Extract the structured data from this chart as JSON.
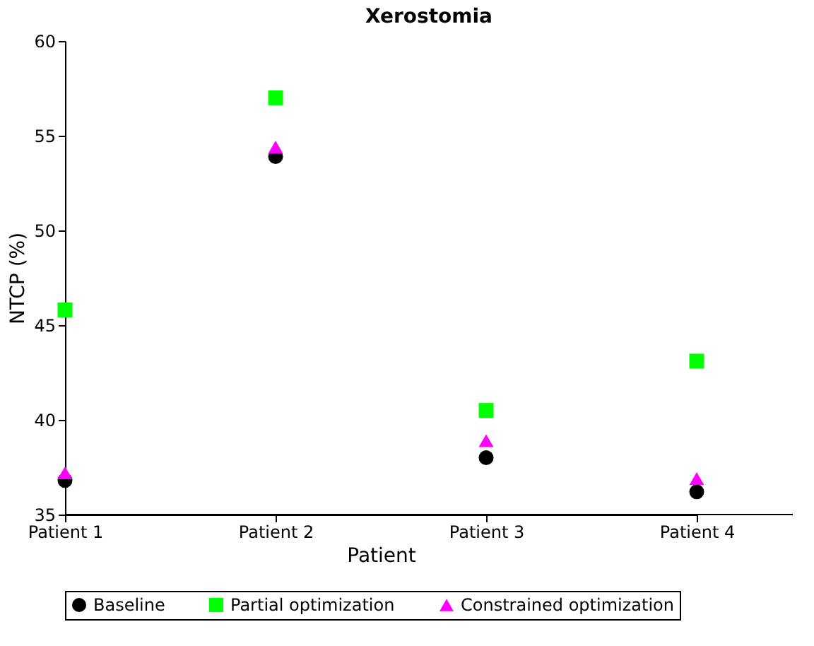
{
  "chart_data": {
    "type": "scatter",
    "title": "Xerostomia",
    "xlabel": "Patient",
    "ylabel": "NTCP (%)",
    "categories": [
      "Patient 1",
      "Patient 2",
      "Patient 3",
      "Patient 4"
    ],
    "ylim": [
      35,
      60
    ],
    "yticks": [
      35,
      40,
      45,
      50,
      55,
      60
    ],
    "grid": false,
    "legend": "bottom",
    "series": [
      {
        "name": "Baseline",
        "color": "#000000",
        "marker": "circle",
        "values": [
          36.8,
          53.9,
          38.0,
          36.2
        ]
      },
      {
        "name": "Partial optimization",
        "color": "#00ff00",
        "marker": "square",
        "values": [
          45.8,
          57.0,
          40.5,
          43.1
        ]
      },
      {
        "name": "Constrained optimization",
        "color": "#ff00ff",
        "marker": "triangle",
        "values": [
          37.2,
          54.4,
          38.9,
          36.9
        ]
      }
    ]
  }
}
